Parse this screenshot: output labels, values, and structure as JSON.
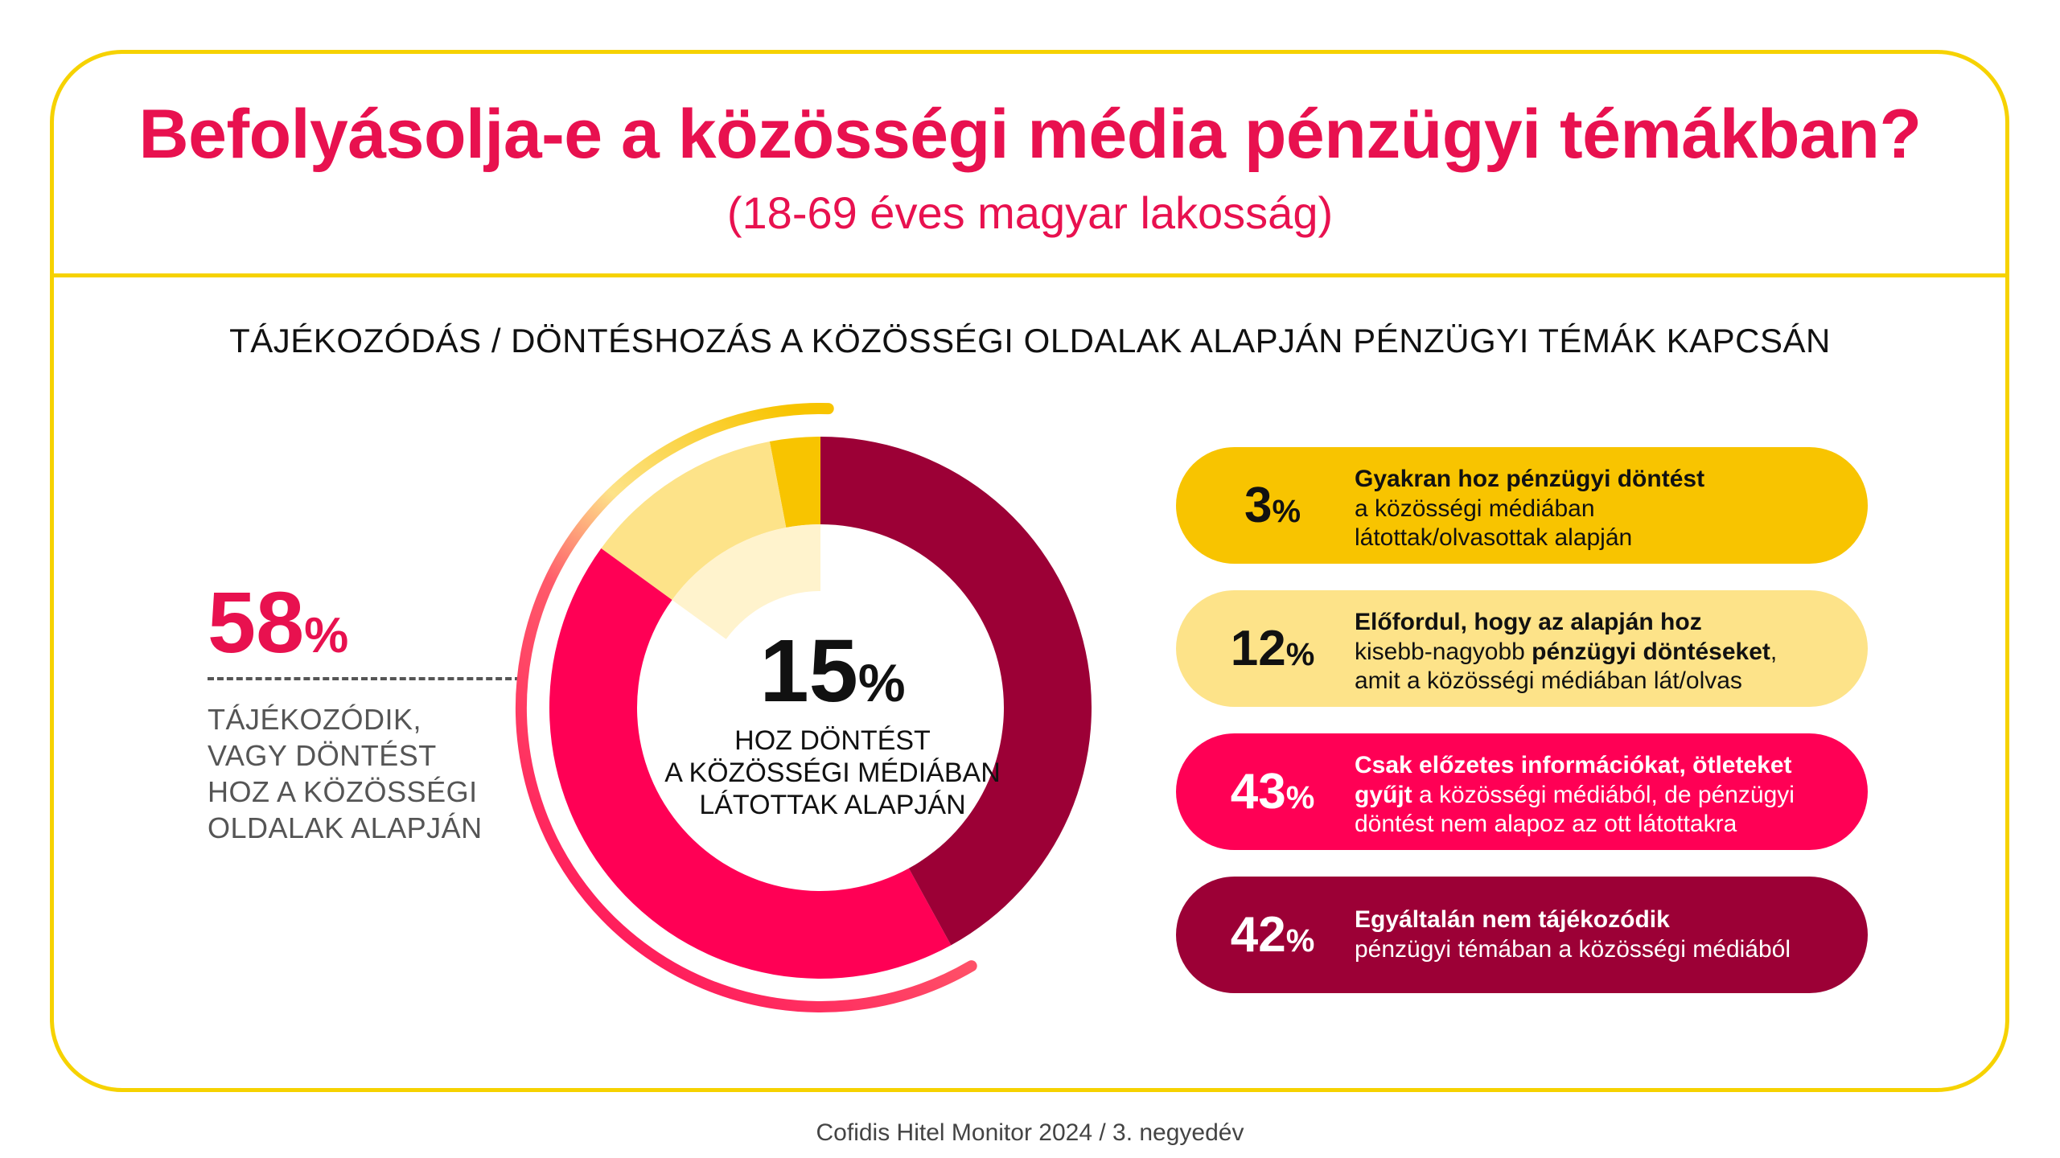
{
  "title": "Befolyásolja-e a közösségi média pénzügyi témákban?",
  "subtitle": "(18-69 éves magyar lakosság)",
  "section_heading": "TÁJÉKOZÓDÁS / DÖNTÉSHOZÁS A KÖZÖSSÉGI OLDALAK ALAPJÁN PÉNZÜGYI TÉMÁK KAPCSÁN",
  "left_stat": {
    "value": "58",
    "unit": "%",
    "caption_lines": [
      "TÁJÉKOZÓDIK,",
      "VAGY DÖNTÉST",
      "HOZ A KÖZÖSSÉGI",
      "OLDALAK ALAPJÁN"
    ]
  },
  "center_stat": {
    "value": "15",
    "unit": "%",
    "label_lines": [
      "HOZ DÖNTÉST",
      "A KÖZÖSSÉGI MÉDIÁBAN",
      "LÁTOTTAK ALAPJÁN"
    ]
  },
  "cards": [
    {
      "pct": "3",
      "unit": "%",
      "bold": "Gyakran hoz pénzügyi döntést",
      "line2": "a közösségi médiában",
      "line3": "látottak/olvasottak alapján"
    },
    {
      "pct": "12",
      "unit": "%",
      "bold": "Előfordul, hogy az alapján hoz",
      "line2a": "kisebb-nagyobb ",
      "line2b": "pénzügyi döntéseket",
      "line2c": ",",
      "line3": "amit a közösségi médiában lát/olvas"
    },
    {
      "pct": "43",
      "unit": "%",
      "bold": "Csak előzetes információkat, ötleteket",
      "line2a": "gyűjt",
      "line2b": " a közösségi médiából, de pénzügyi",
      "line3": "döntést nem alapoz az ott látottakra"
    },
    {
      "pct": "42",
      "unit": "%",
      "bold": "Egyáltalán nem tájékozódik",
      "line2": "pénzügyi témában a közösségi médiából"
    }
  ],
  "colors": {
    "frame": "#f6d200",
    "accent": "#e8114f",
    "gyakran": "#f8c400",
    "elofordul": "#fde389",
    "csak": "#ff0055",
    "nem": "#9c0036",
    "text_dark": "#111111",
    "text_grey": "#555555"
  },
  "chart_data": {
    "type": "pie",
    "categories": [
      "Gyakran hoz pénzügyi döntést",
      "Előfordul, hogy az alapján hoz kisebb-nagyobb pénzügyi döntéseket",
      "Csak előzetes információkat, ötleteket gyűjt",
      "Egyáltalán nem tájékozódik"
    ],
    "values": [
      3,
      12,
      43,
      42
    ],
    "unit": "%",
    "title": "TÁJÉKOZÓDÁS / DÖNTÉSHOZÁS A KÖZÖSSÉGI OLDALAK ALAPJÁN PÉNZÜGYI TÉMÁK KAPCSÁN",
    "center_value": 15,
    "outer_arc_value": 58
  },
  "source": "Cofidis Hitel Monitor 2024 / 3. negyedév"
}
